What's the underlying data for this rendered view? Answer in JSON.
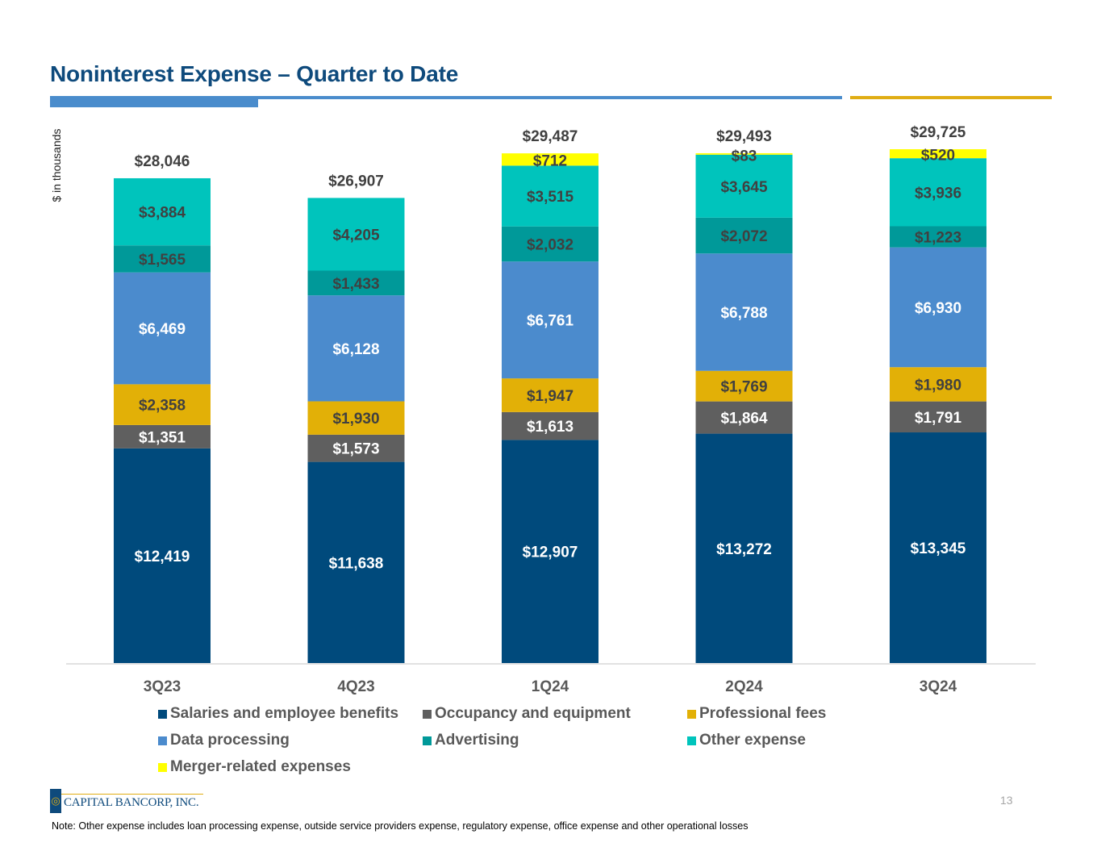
{
  "slide": {
    "title": "Noninterest Expense – Quarter to Date",
    "page_number": "13",
    "note": "Note: Other expense includes loan processing expense, outside service providers expense, regulatory expense, office expense and other operational losses",
    "logo_text": "CAPITAL BANCORP, INC.",
    "logo_icon": "swirl-icon"
  },
  "colors": {
    "title": "#0e4a7c",
    "accent_blue": "#4a8ccc",
    "accent_gold": "#e0ad14"
  },
  "chart_data": {
    "type": "bar",
    "stacked": true,
    "title": "Noninterest Expense – Quarter to Date",
    "xlabel": "",
    "ylabel": "$ in thousands",
    "ylim": [
      0,
      29725
    ],
    "grid": false,
    "legend_position": "bottom",
    "categories": [
      "3Q23",
      "4Q23",
      "1Q24",
      "2Q24",
      "3Q24"
    ],
    "totals": [
      28046,
      26907,
      29487,
      29493,
      29725
    ],
    "total_labels": [
      "$28,046",
      "$26,907",
      "$29,487",
      "$29,493",
      "$29,725"
    ],
    "series": [
      {
        "name": "Salaries and employee benefits",
        "color": "#004a7c",
        "label_color": "#ffffff",
        "values": [
          12419,
          11638,
          12907,
          13272,
          13345
        ],
        "labels": [
          "$12,419",
          "$11,638",
          "$12,907",
          "$13,272",
          "$13,345"
        ]
      },
      {
        "name": "Occupancy and equipment",
        "color": "#5f5f5f",
        "label_color": "#ffffff",
        "values": [
          1351,
          1573,
          1613,
          1864,
          1791
        ],
        "labels": [
          "$1,351",
          "$1,573",
          "$1,613",
          "$1,864",
          "$1,791"
        ]
      },
      {
        "name": "Professional fees",
        "color": "#e2b007",
        "label_color": "#404040",
        "values": [
          2358,
          1930,
          1947,
          1769,
          1980
        ],
        "labels": [
          "$2,358",
          "$1,930",
          "$1,947",
          "$1,769",
          "$1,980"
        ]
      },
      {
        "name": "Data processing",
        "color": "#4b8bcd",
        "label_color": "#ffffff",
        "values": [
          6469,
          6128,
          6761,
          6788,
          6930
        ],
        "labels": [
          "$6,469",
          "$6,128",
          "$6,761",
          "$6,788",
          "$6,930"
        ]
      },
      {
        "name": "Advertising",
        "color": "#009999",
        "label_color": "#404040",
        "values": [
          1565,
          1433,
          2032,
          2072,
          1223
        ],
        "labels": [
          "$1,565",
          "$1,433",
          "$2,032",
          "$2,072",
          "$1,223"
        ]
      },
      {
        "name": "Other expense",
        "color": "#00c4bc",
        "label_color": "#404040",
        "values": [
          3884,
          4205,
          3515,
          3645,
          3936
        ],
        "labels": [
          "$3,884",
          "$4,205",
          "$3,515",
          "$3,645",
          "$3,936"
        ]
      },
      {
        "name": "Merger-related expenses",
        "color": "#ffff00",
        "label_color": "#404040",
        "values": [
          0,
          0,
          712,
          83,
          520
        ],
        "labels": [
          "",
          "",
          "$712",
          "$83",
          "$520"
        ]
      }
    ]
  }
}
